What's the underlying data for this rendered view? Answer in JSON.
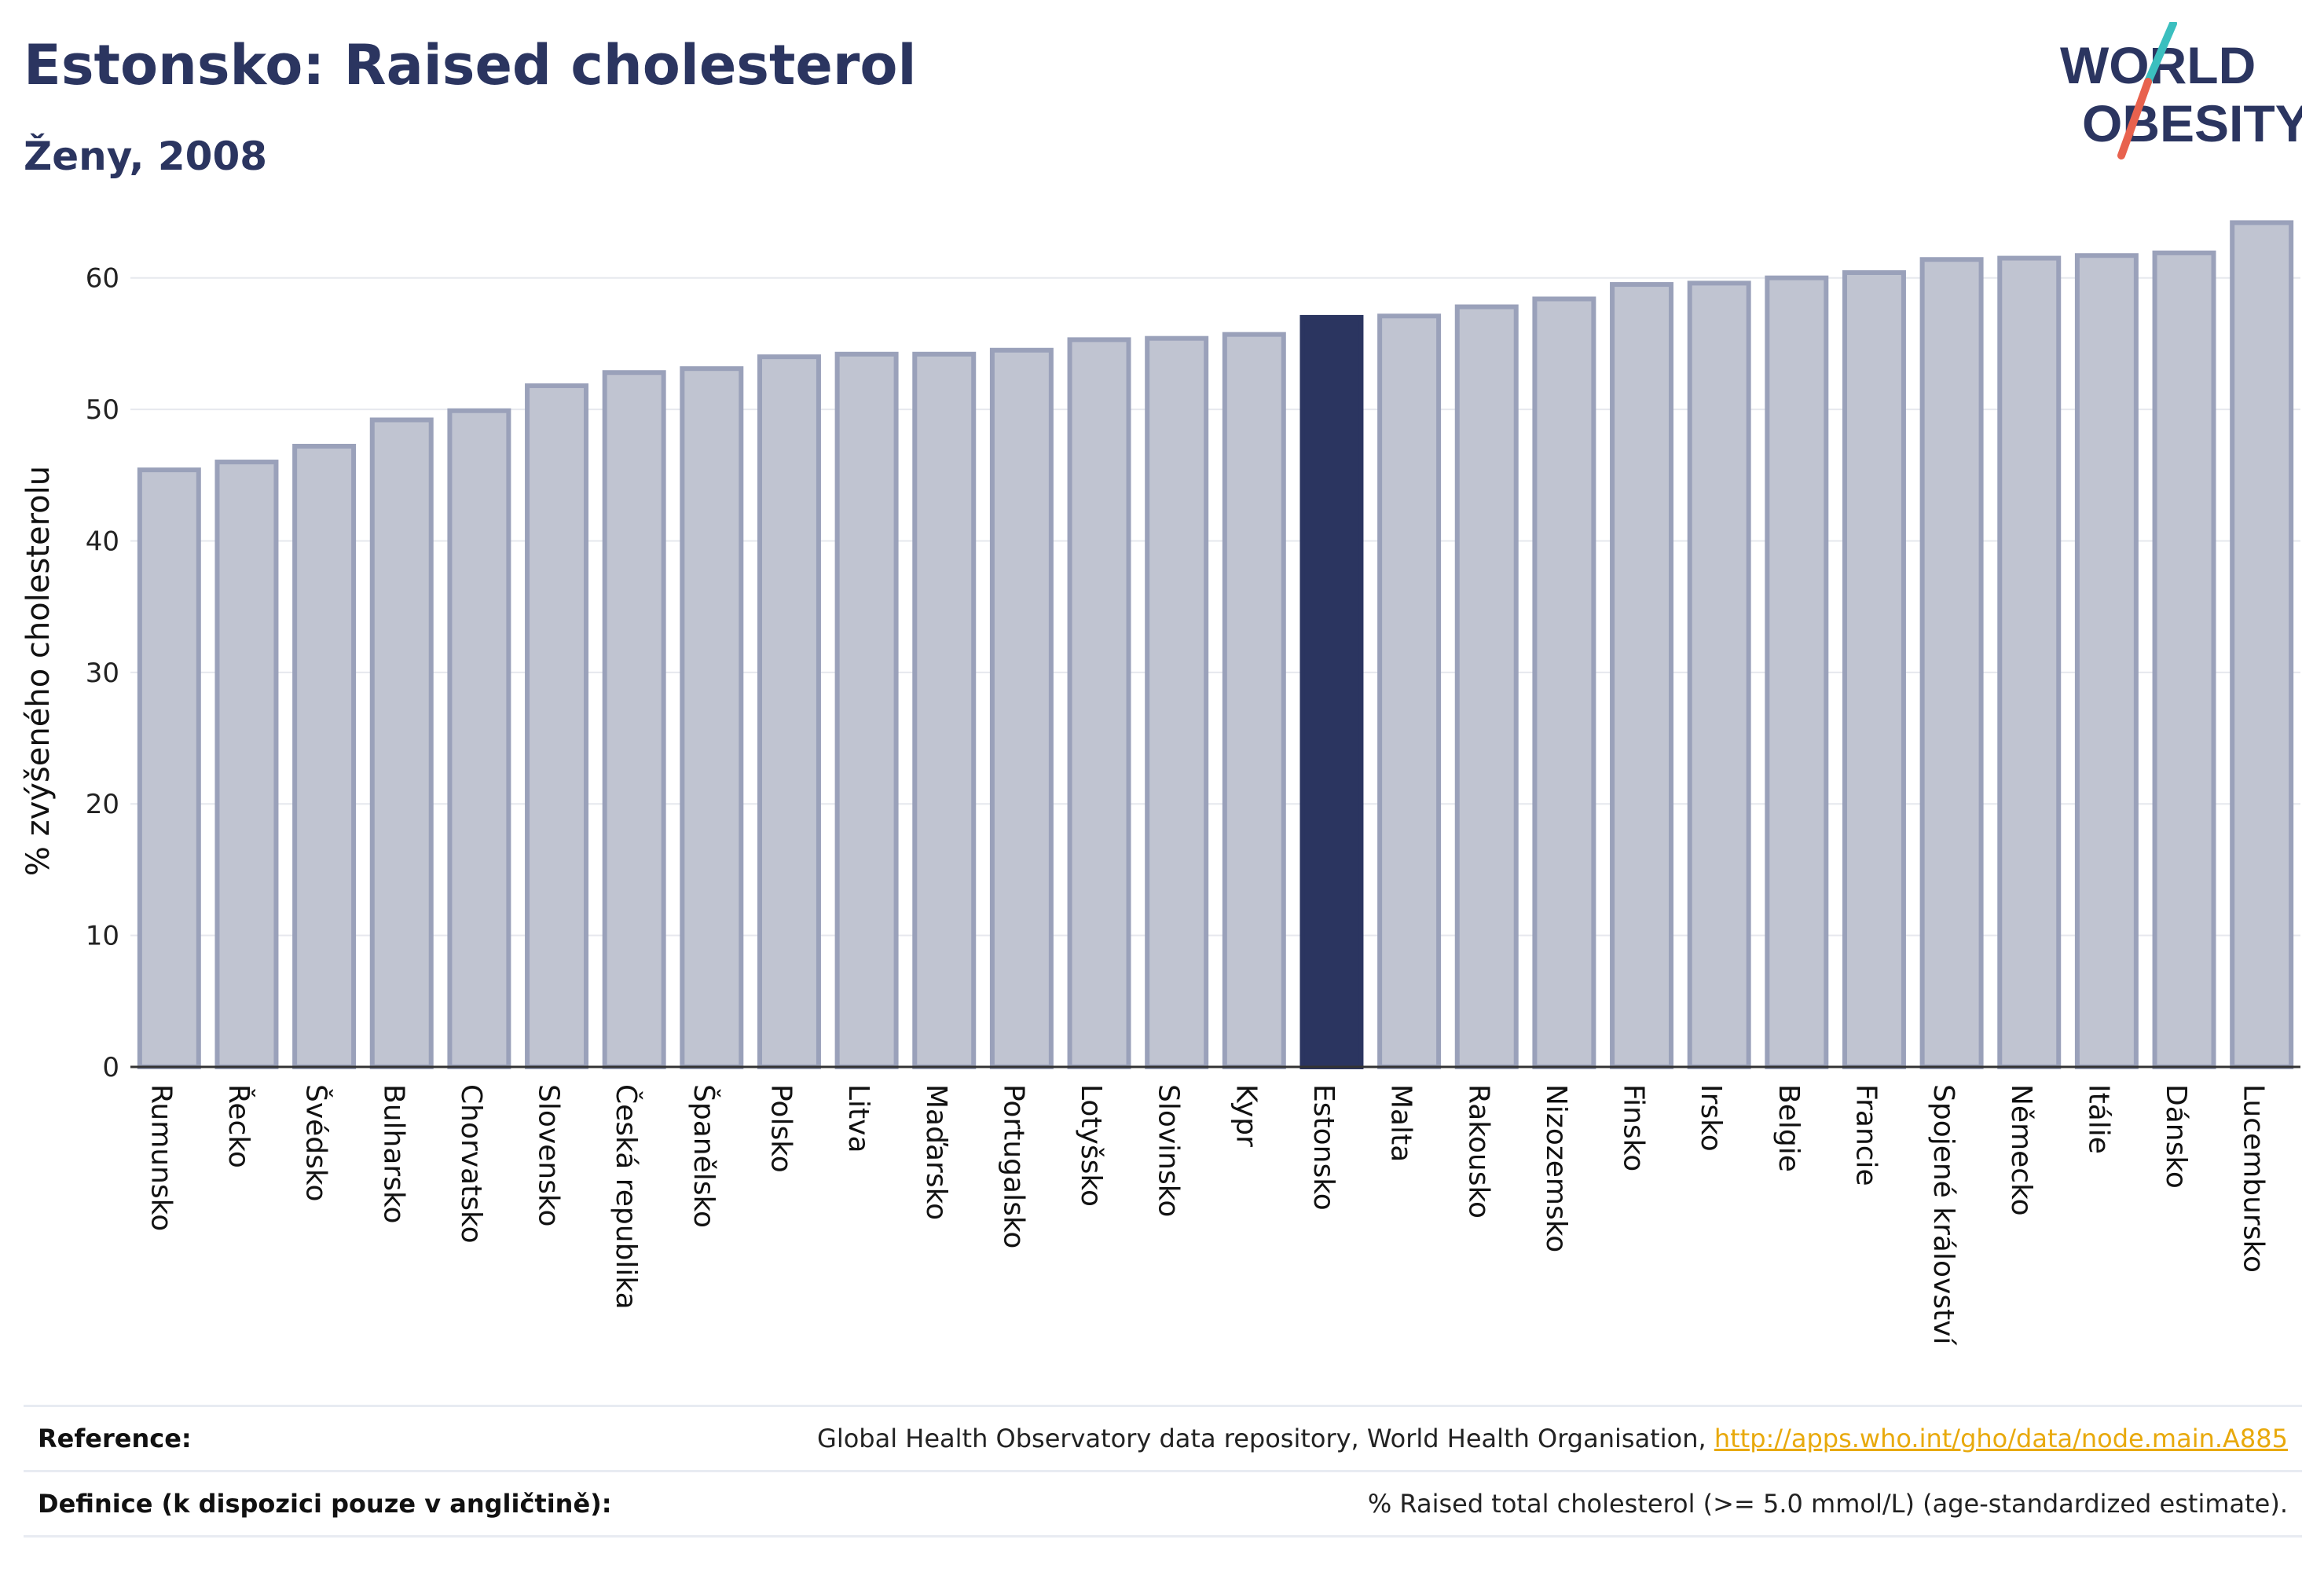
{
  "header": {
    "title": "Estonsko: Raised cholesterol",
    "subtitle": "Ženy, 2008"
  },
  "logo": {
    "line1": "WORLD",
    "line2": "OBESITY",
    "colors": {
      "text": "#2b3560",
      "slash_teal": "#3bbfbf",
      "slash_red": "#e8624e"
    }
  },
  "chart_data": {
    "type": "bar",
    "ylabel": "% zvýšeného cholesterolu",
    "xlabel": "",
    "ylim": [
      0,
      65
    ],
    "yticks": [
      0,
      10,
      20,
      30,
      40,
      50,
      60
    ],
    "grid": true,
    "highlight": "Estonsko",
    "colors": {
      "bar": "#c0c4d1",
      "bar_edge": "#9aa1ba",
      "highlight": "#2b3560"
    },
    "categories": [
      "Rumunsko",
      "Řecko",
      "Švédsko",
      "Bulharsko",
      "Chorvatsko",
      "Slovensko",
      "Česká republika",
      "Španělsko",
      "Polsko",
      "Litva",
      "Maďarsko",
      "Portugalsko",
      "Lotyšsko",
      "Slovinsko",
      "Kypr",
      "Estonsko",
      "Malta",
      "Rakousko",
      "Nizozemsko",
      "Finsko",
      "Irsko",
      "Belgie",
      "Francie",
      "Spojené království",
      "Německo",
      "Itálie",
      "Dánsko",
      "Lucembursko"
    ],
    "values": [
      45.4,
      46.0,
      47.2,
      49.2,
      49.9,
      51.8,
      52.8,
      53.1,
      54.0,
      54.2,
      54.2,
      54.5,
      55.3,
      55.4,
      55.7,
      57.0,
      57.1,
      57.8,
      58.4,
      59.5,
      59.6,
      60.0,
      60.4,
      61.4,
      61.5,
      61.7,
      61.9,
      64.2
    ]
  },
  "references": {
    "reference_label": "Reference:",
    "reference_text": "Global Health Observatory data repository, World Health Organisation, ",
    "reference_link": "http://apps.who.int/gho/data/node.main.A885",
    "definition_label": "Definice (k dispozici pouze v angličtině):",
    "definition_text": "% Raised total cholesterol (>= 5.0 mmol/L) (age-standardized estimate)."
  }
}
